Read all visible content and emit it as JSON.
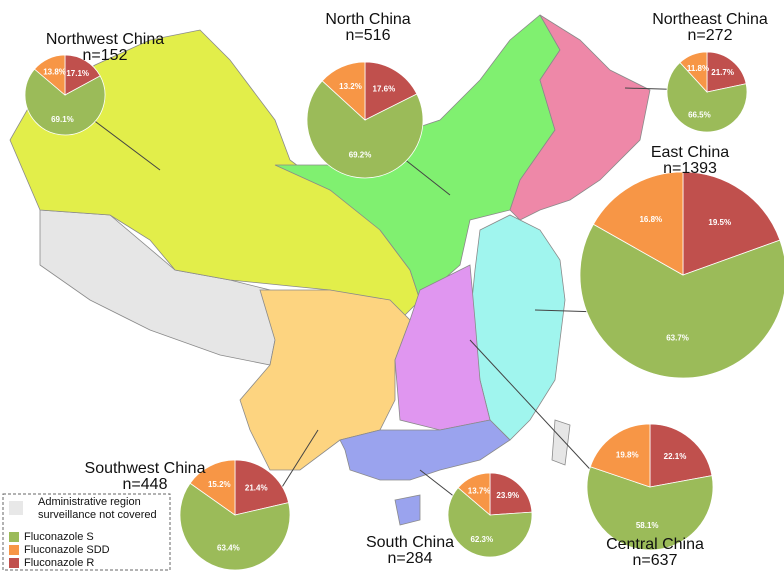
{
  "series": [
    {
      "name": "Fluconazole S",
      "color": "#9bbb59"
    },
    {
      "name": "Fluconazole SDD",
      "color": "#f79646"
    },
    {
      "name": "Fluconazole R",
      "color": "#c0504d"
    }
  ],
  "legend": {
    "uncovered": {
      "lines": [
        "Administrative region",
        "surveillance not covered"
      ],
      "color": "#e8e8e8"
    }
  },
  "regions": [
    {
      "name": "Northwest China",
      "count": "n=152",
      "values": [
        69.1,
        13.8,
        17.1
      ],
      "value_labels": [
        "69.1%",
        "13.8%",
        "17.1%"
      ]
    },
    {
      "name": "North China",
      "count": "n=516",
      "values": [
        69.2,
        13.2,
        17.6
      ],
      "value_labels": [
        "69.2%",
        "13.2%",
        "17.6%"
      ]
    },
    {
      "name": "Northeast China",
      "count": "n=272",
      "values": [
        66.5,
        11.8,
        21.7
      ],
      "value_labels": [
        "66.5%",
        "11.8%",
        "21.7%"
      ]
    },
    {
      "name": "East China",
      "count": "n=1393",
      "values": [
        63.7,
        16.8,
        19.5
      ],
      "value_labels": [
        "63.7%",
        "16.8%",
        "19.5%"
      ]
    },
    {
      "name": "Central China",
      "count": "n=637",
      "values": [
        58.1,
        19.8,
        22.1
      ],
      "value_labels": [
        "58.1%",
        "19.8%",
        "22.1%"
      ]
    },
    {
      "name": "Southwest China",
      "count": "n=448",
      "values": [
        63.4,
        15.2,
        21.4
      ],
      "value_labels": [
        "63.4%",
        "15.2%",
        "21.4%"
      ]
    },
    {
      "name": "South China",
      "count": "n=284",
      "values": [
        62.3,
        13.7,
        23.9
      ],
      "value_labels": [
        "62.3%",
        "13.7%",
        "23.9%"
      ]
    }
  ]
}
